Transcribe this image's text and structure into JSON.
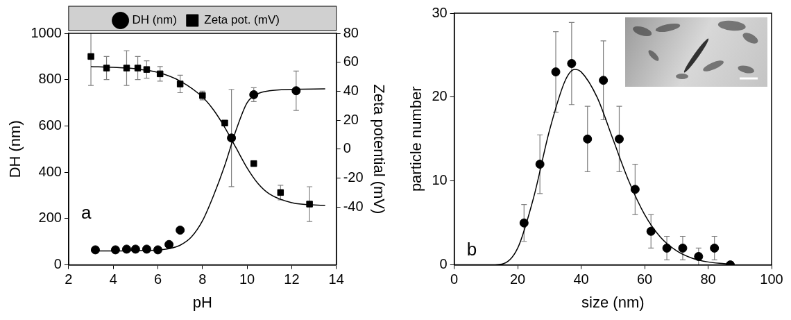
{
  "chart_data": [
    {
      "type": "scatter",
      "panel_label": "a",
      "x_label": "pH",
      "y_label": "DH (nm)",
      "y2_label": "Zeta potential (mV)",
      "xlim": [
        2,
        14
      ],
      "xticks": [
        2,
        4,
        6,
        8,
        10,
        12,
        14
      ],
      "ylim": [
        0,
        1000
      ],
      "yticks": [
        0,
        200,
        400,
        600,
        800,
        1000
      ],
      "y2lim": [
        -80,
        80
      ],
      "y2ticks": [
        -40,
        -20,
        0,
        20,
        40,
        60,
        80
      ],
      "legend": "top",
      "grid": false,
      "series": [
        {
          "name": "DH (nm)",
          "color": "#000000",
          "marker": "circle",
          "x": [
            3.2,
            4.1,
            4.6,
            5.0,
            5.5,
            6.0,
            6.5,
            7.0,
            9.3,
            10.3,
            12.2
          ],
          "values": [
            65,
            65,
            68,
            68,
            68,
            65,
            88,
            150,
            548,
            735,
            752
          ],
          "errors": [
            null,
            null,
            null,
            null,
            null,
            null,
            null,
            null,
            210,
            30,
            85
          ],
          "fit": {
            "x": [
              3,
              4,
              5,
              6,
              6.5,
              7,
              7.5,
              8,
              8.5,
              9,
              9.5,
              10,
              10.5,
              11,
              12,
              13.5
            ],
            "values": [
              60,
              60,
              61,
              64,
              70,
              85,
              120,
              190,
              300,
              430,
              580,
              700,
              740,
              752,
              758,
              760
            ]
          }
        },
        {
          "name": "Zeta pot. (mV)",
          "color": "#000000",
          "marker": "square",
          "axis": "y2",
          "x": [
            3.0,
            3.7,
            4.6,
            5.1,
            5.5,
            6.1,
            7.0,
            8.0,
            9.0,
            10.3,
            11.5,
            12.8
          ],
          "values": [
            64,
            56,
            56,
            56,
            55,
            52,
            45,
            37,
            18,
            -10,
            -30,
            -38
          ],
          "errors": [
            20,
            8,
            12,
            8,
            6,
            5,
            6,
            3,
            null,
            null,
            5,
            12
          ],
          "fit": {
            "x": [
              3,
              4,
              5,
              6,
              7,
              8,
              8.5,
              9,
              9.5,
              10,
              10.5,
              11,
              12,
              13.5
            ],
            "values": [
              57,
              56.5,
              55.5,
              53,
              47,
              36,
              27,
              15,
              1,
              -13,
              -24,
              -31,
              -37,
              -39
            ]
          }
        }
      ]
    },
    {
      "type": "scatter",
      "panel_label": "b",
      "x_label": "size (nm)",
      "y_label": "particle number",
      "xlim": [
        0,
        100
      ],
      "xticks": [
        0,
        20,
        40,
        60,
        80,
        100
      ],
      "ylim": [
        0,
        30
      ],
      "yticks": [
        0,
        10,
        20,
        30
      ],
      "grid": false,
      "series": [
        {
          "color": "#000000",
          "marker": "circle",
          "x": [
            22,
            27,
            32,
            37,
            42,
            47,
            52,
            57,
            62,
            67,
            72,
            77,
            82,
            87
          ],
          "values": [
            5,
            12,
            23,
            24,
            15,
            22,
            15,
            9,
            4,
            2,
            2,
            1,
            2,
            0
          ],
          "errors": [
            2.2,
            3.5,
            4.8,
            4.9,
            3.9,
            4.7,
            3.9,
            3,
            2,
            1.4,
            1.4,
            1,
            1.4,
            null
          ],
          "fit": {
            "x": [
              0,
              10,
              15,
              20,
              25,
              30,
              35,
              38,
              40,
              45,
              50,
              55,
              60,
              65,
              70,
              75,
              80,
              85,
              88
            ],
            "values": [
              0,
              0,
              0.1,
              2,
              8,
              16,
              22,
              23.3,
              23,
              20,
              15,
              10,
              6,
              3.3,
              1.7,
              0.8,
              0.35,
              0.15,
              0.05
            ]
          }
        }
      ]
    }
  ]
}
